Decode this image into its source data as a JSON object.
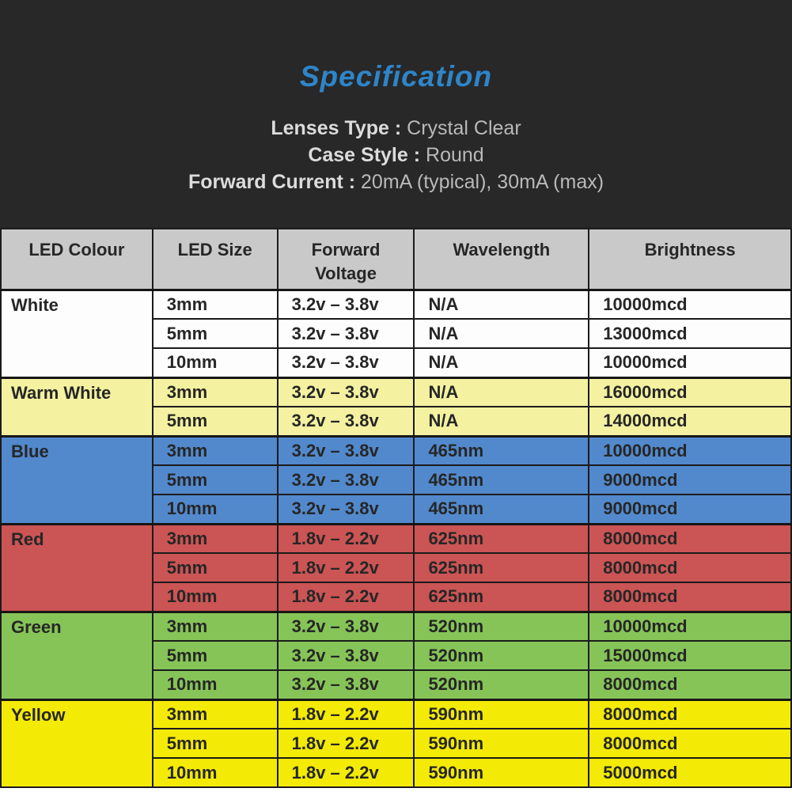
{
  "title": "Specification",
  "specs": [
    {
      "label": "Lenses Type :",
      "value": "Crystal Clear"
    },
    {
      "label": "Case Style :",
      "value": "Round"
    },
    {
      "label": "Forward Current :",
      "value": "20mA (typical), 30mA (max)"
    }
  ],
  "table": {
    "headers": [
      "LED Colour",
      "LED Size",
      "Forward Voltage",
      "Wavelength",
      "Brightness"
    ],
    "groups": [
      {
        "colour": "White",
        "bg": "#fdfdfd",
        "rows": [
          [
            "3mm",
            "3.2v – 3.8v",
            "N/A",
            "10000mcd"
          ],
          [
            "5mm",
            "3.2v – 3.8v",
            "N/A",
            "13000mcd"
          ],
          [
            "10mm",
            "3.2v – 3.8v",
            "N/A",
            "10000mcd"
          ]
        ]
      },
      {
        "colour": "Warm White",
        "bg": "#f4f1a1",
        "rows": [
          [
            "3mm",
            "3.2v – 3.8v",
            "N/A",
            "16000mcd"
          ],
          [
            "5mm",
            "3.2v – 3.8v",
            "N/A",
            "14000mcd"
          ]
        ]
      },
      {
        "colour": "Blue",
        "bg": "#5289cc",
        "rows": [
          [
            "3mm",
            "3.2v – 3.8v",
            "465nm",
            "10000mcd"
          ],
          [
            "5mm",
            "3.2v – 3.8v",
            "465nm",
            "9000mcd"
          ],
          [
            "10mm",
            "3.2v – 3.8v",
            "465nm",
            "9000mcd"
          ]
        ]
      },
      {
        "colour": "Red",
        "bg": "#cb5454",
        "rows": [
          [
            "3mm",
            "1.8v – 2.2v",
            "625nm",
            "8000mcd"
          ],
          [
            "5mm",
            "1.8v – 2.2v",
            "625nm",
            "8000mcd"
          ],
          [
            "10mm",
            "1.8v – 2.2v",
            "625nm",
            "8000mcd"
          ]
        ]
      },
      {
        "colour": "Green",
        "bg": "#86c458",
        "rows": [
          [
            "3mm",
            "3.2v – 3.8v",
            "520nm",
            "10000mcd"
          ],
          [
            "5mm",
            "3.2v – 3.8v",
            "520nm",
            "15000mcd"
          ],
          [
            "10mm",
            "3.2v – 3.8v",
            "520nm",
            "8000mcd"
          ]
        ]
      },
      {
        "colour": "Yellow",
        "bg": "#f3ea06",
        "rows": [
          [
            "3mm",
            "1.8v – 2.2v",
            "590nm",
            "8000mcd"
          ],
          [
            "5mm",
            "1.8v – 2.2v",
            "590nm",
            "8000mcd"
          ],
          [
            "10mm",
            "1.8v – 2.2v",
            "590nm",
            "5000mcd"
          ]
        ]
      }
    ]
  },
  "colors": {
    "top_background": "#282828",
    "title_blue": "#2e85c9",
    "spec_label": "#dcdcdc",
    "spec_value": "#b9b9b9",
    "header_bg": "#c9c9c9",
    "border": "#1b1b1b"
  }
}
